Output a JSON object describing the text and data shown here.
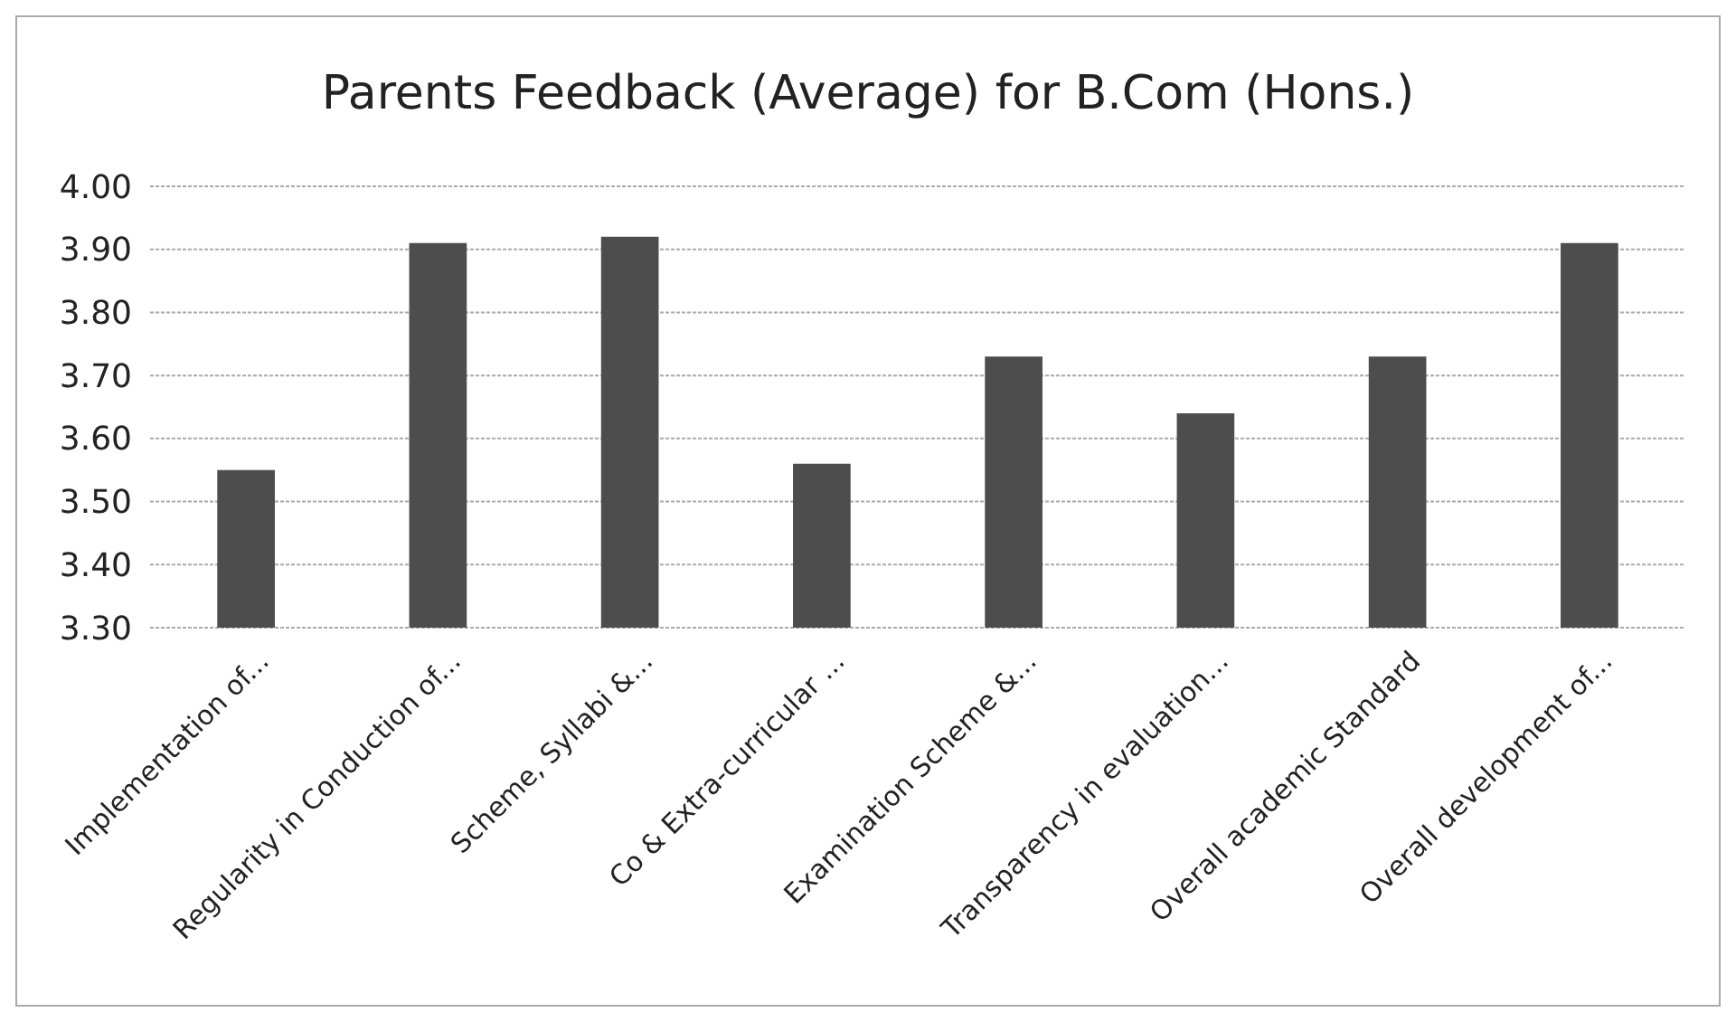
{
  "chart_data": {
    "type": "bar",
    "title": "Parents Feedback (Average) for B.Com (Hons.)",
    "categories": [
      "Implementation of...",
      "Regularity in Conduction of...",
      "Scheme, Syllabi &...",
      "Co & Extra-curricular ...",
      "Examination Scheme &...",
      "Transparency in evaluation...",
      "Overall academic Standard",
      "Overall development of..."
    ],
    "values": [
      3.55,
      3.91,
      3.92,
      3.56,
      3.73,
      3.64,
      3.73,
      3.91
    ],
    "color": "#4d4d4d",
    "ylim": [
      3.3,
      4.0
    ],
    "yticks": [
      {
        "value": 3.3,
        "label": "3.30"
      },
      {
        "value": 3.4,
        "label": "3.40"
      },
      {
        "value": 3.5,
        "label": "3.50"
      },
      {
        "value": 3.6,
        "label": "3.60"
      },
      {
        "value": 3.7,
        "label": "3.70"
      },
      {
        "value": 3.8,
        "label": "3.80"
      },
      {
        "value": 3.9,
        "label": "3.90"
      },
      {
        "value": 4.0,
        "label": "4.00"
      }
    ],
    "grid": true
  }
}
